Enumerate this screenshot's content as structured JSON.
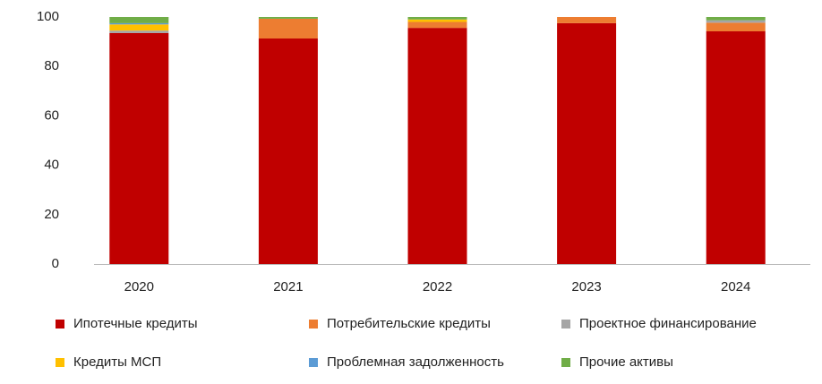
{
  "chart_data": {
    "type": "stacked_bar",
    "categories": [
      "2020",
      "2021",
      "2022",
      "2023",
      "2024"
    ],
    "series": [
      {
        "name": "Ипотечные кредиты",
        "color": "#c00000",
        "values": [
          93.5,
          91.3,
          95.6,
          97.5,
          94.2
        ]
      },
      {
        "name": "Потребительские кредиты",
        "color": "#ed7d31",
        "values": [
          0,
          8,
          2.4,
          2.5,
          3.5
        ]
      },
      {
        "name": "Проектное финансирование",
        "color": "#a5a5a5",
        "values": [
          1,
          0,
          0,
          0,
          1
        ]
      },
      {
        "name": "Кредиты МСП",
        "color": "#ffc000",
        "values": [
          2.5,
          0,
          1,
          0,
          0
        ]
      },
      {
        "name": "Проблемная задолженность",
        "color": "#5b9bd5",
        "values": [
          0.5,
          0,
          0,
          0,
          0
        ]
      },
      {
        "name": "Прочие активы",
        "color": "#70ad47",
        "values": [
          2.5,
          0.7,
          1,
          0,
          1.3
        ]
      }
    ],
    "ylim": [
      0,
      100
    ],
    "yticks": [
      0,
      20,
      40,
      60,
      80,
      100
    ],
    "grid": false
  }
}
